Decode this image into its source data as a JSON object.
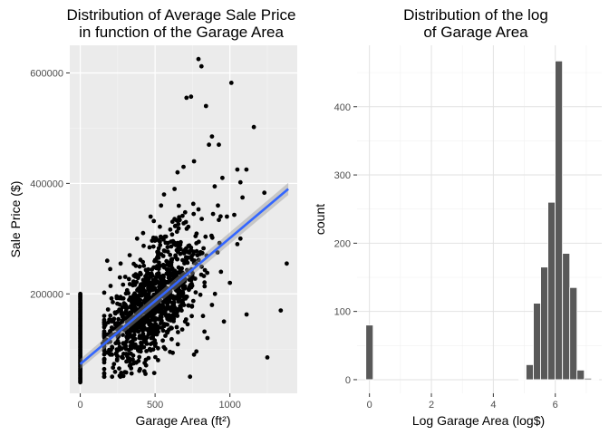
{
  "chart_data": [
    {
      "type": "scatter",
      "title": "Distribution of Average Sale Price\nin function of the Garage Area",
      "xlabel": "Garage Area (ft²)",
      "ylabel": "Sale Price ($)",
      "xlim": [
        -70,
        1450
      ],
      "ylim": [
        20000,
        650000
      ],
      "x_ticks": [
        0,
        500,
        1000
      ],
      "y_ticks": [
        200000,
        400000,
        600000
      ],
      "x_tick_labels": [
        "0",
        "500",
        "1000"
      ],
      "y_tick_labels": [
        "200000",
        "400000",
        "600000"
      ],
      "grid": true,
      "panel_background": "#ebebeb",
      "point_color": "#000000",
      "trend_line": {
        "method": "linear",
        "x": [
          0,
          1390
        ],
        "y": [
          73000,
          390000
        ],
        "color": "#3366ff",
        "band_color": "#999999"
      },
      "cluster": {
        "n": 1100,
        "x_mean": 480,
        "x_sd": 170,
        "intercept": 75000,
        "slope": 230,
        "noise_sd": 45000,
        "seed": 11
      },
      "zero_garage_points": {
        "x": 0,
        "y_min": 40000,
        "y_max": 200000,
        "n": 70
      },
      "points": [
        [
          790,
          625000
        ],
        [
          810,
          612000
        ],
        [
          1010,
          582000
        ],
        [
          710,
          555000
        ],
        [
          740,
          557000
        ],
        [
          840,
          540000
        ],
        [
          1160,
          502000
        ],
        [
          880,
          485000
        ],
        [
          860,
          470000
        ],
        [
          760,
          440000
        ],
        [
          690,
          430000
        ],
        [
          1050,
          425000
        ],
        [
          950,
          410000
        ],
        [
          1110,
          425000
        ],
        [
          1070,
          402000
        ],
        [
          1230,
          383000
        ],
        [
          1380,
          255000
        ],
        [
          1340,
          170000
        ],
        [
          1250,
          85000
        ],
        [
          1070,
          300000
        ],
        [
          1050,
          290000
        ],
        [
          980,
          340000
        ],
        [
          920,
          360000
        ],
        [
          650,
          420000
        ],
        [
          630,
          390000
        ],
        [
          560,
          380000
        ],
        [
          540,
          360000
        ],
        [
          470,
          340000
        ],
        [
          420,
          310000
        ],
        [
          380,
          300000
        ],
        [
          330,
          270000
        ],
        [
          270,
          255000
        ],
        [
          200,
          245000
        ],
        [
          180,
          260000
        ],
        [
          900,
          200000
        ],
        [
          940,
          240000
        ],
        [
          1000,
          220000
        ],
        [
          850,
          120000
        ],
        [
          760,
          90000
        ],
        [
          600,
          95000
        ],
        [
          520,
          80000
        ],
        [
          430,
          75000
        ],
        [
          330,
          70000
        ],
        [
          260,
          65000
        ],
        [
          200,
          90000
        ],
        [
          150,
          110000
        ],
        [
          880,
          180000
        ],
        [
          960,
          150000
        ],
        [
          700,
          150000
        ],
        [
          820,
          160000
        ]
      ]
    },
    {
      "type": "bar",
      "title": "Distribution of the log\nof Garage Area",
      "xlabel": "Log Garage Area (log$)",
      "ylabel": "count",
      "xlim": [
        -0.4,
        7.5
      ],
      "ylim": [
        -20,
        490
      ],
      "x_ticks": [
        0,
        2,
        4,
        6
      ],
      "y_ticks": [
        0,
        100,
        200,
        300,
        400
      ],
      "x_tick_labels": [
        "0",
        "2",
        "4",
        "6"
      ],
      "y_tick_labels": [
        "0",
        "100",
        "200",
        "300",
        "400"
      ],
      "bin_width": 0.235,
      "bar_color": "#595959",
      "bins": [
        {
          "x": 0.0,
          "count": 80
        },
        {
          "x": 4.94,
          "count": 1
        },
        {
          "x": 5.175,
          "count": 22
        },
        {
          "x": 5.41,
          "count": 112
        },
        {
          "x": 5.645,
          "count": 165
        },
        {
          "x": 5.88,
          "count": 260
        },
        {
          "x": 6.115,
          "count": 467
        },
        {
          "x": 6.35,
          "count": 185
        },
        {
          "x": 6.585,
          "count": 135
        },
        {
          "x": 6.82,
          "count": 14
        },
        {
          "x": 7.055,
          "count": 2
        },
        {
          "x": 7.29,
          "count": 1
        }
      ]
    }
  ]
}
